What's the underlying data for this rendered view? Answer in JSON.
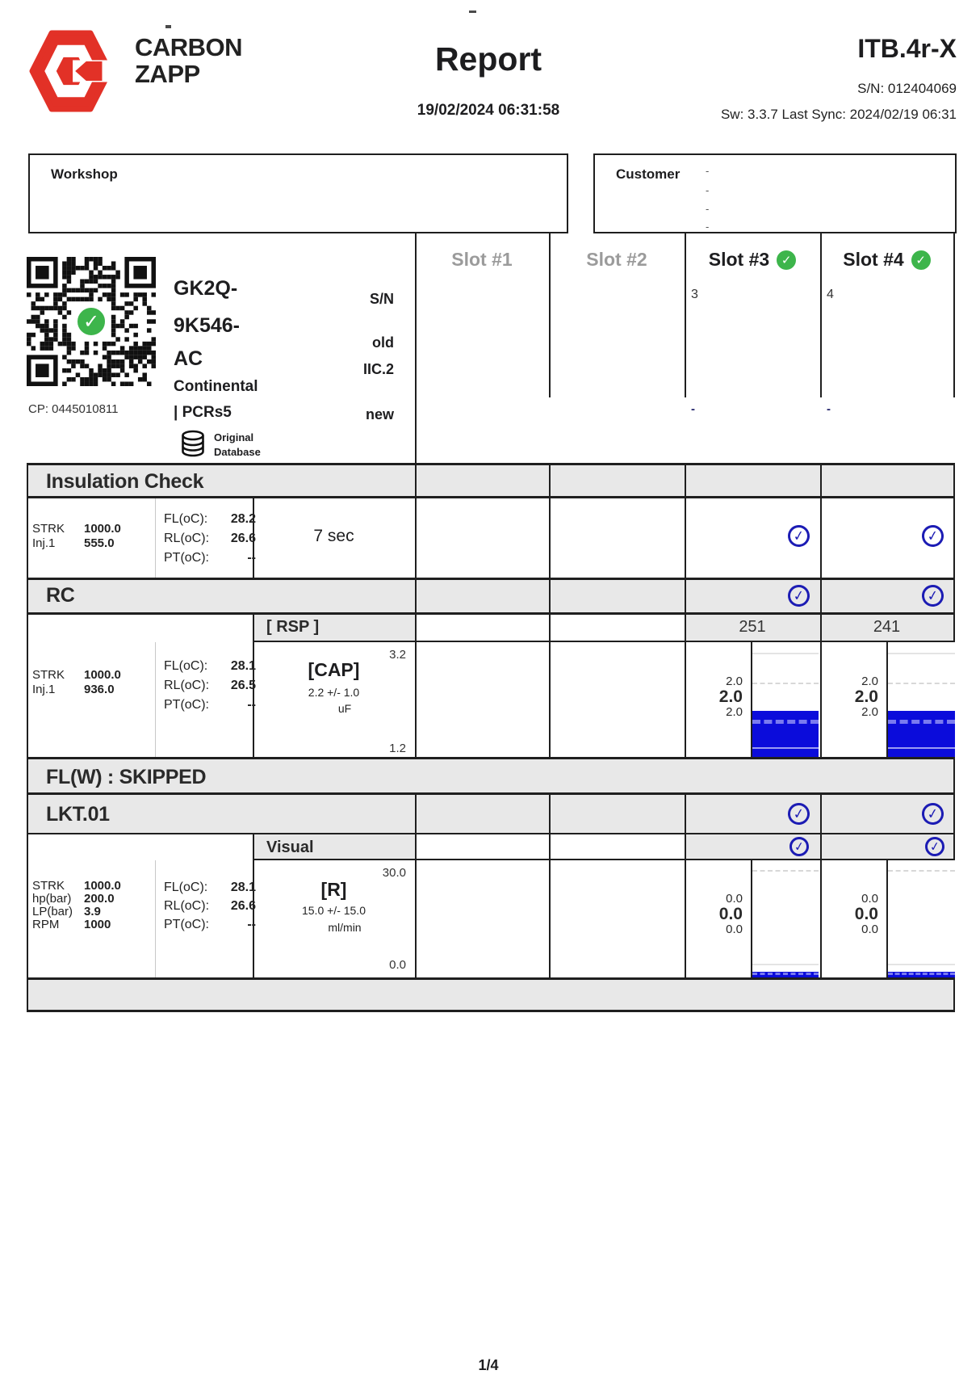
{
  "colors": {
    "brand_red": "#e23127",
    "pass_green": "#3db54b",
    "check_blue": "#1c1cb4",
    "bar_blue": "#0b0cdb",
    "band_gray": "#e8e8e8",
    "inactive_slot_text": "#9b9b9b"
  },
  "header": {
    "brand_line1": "CARBON",
    "brand_line2": "ZAPP",
    "title": "Report",
    "datetime": "19/02/2024 06:31:58",
    "model": "ITB.4r-X",
    "serial": "S/N: 012404069",
    "sw_line": "Sw: 3.3.7 Last Sync: 2024/02/19 06:31"
  },
  "workshop_box": {
    "label": "Workshop"
  },
  "customer_box": {
    "label": "Customer",
    "lines": [
      "-",
      "-",
      "-",
      "-"
    ]
  },
  "part": {
    "qr_caption": "CP: 0445010811",
    "code_lines": [
      "GK2Q-",
      "9K546-",
      "AC"
    ],
    "brand": "Continental",
    "series": "| PCRs5",
    "db_line1": "Original",
    "db_line2": "Database",
    "row_labels": {
      "sn": "S/N",
      "old": "old",
      "iic": "IIC.2",
      "new": "new"
    }
  },
  "slot_area": {
    "slots": [
      {
        "label": "Slot #1",
        "state": "empty"
      },
      {
        "label": "Slot #2",
        "state": "empty"
      },
      {
        "label": "Slot #3",
        "state": "ok",
        "sn": "3",
        "new_val": "-"
      },
      {
        "label": "Slot #4",
        "state": "ok",
        "sn": "4",
        "new_val": "-"
      }
    ]
  },
  "sections": {
    "insulation_check": {
      "title": "Insulation Check",
      "params": [
        {
          "k": "STRK",
          "v": "1000.0"
        },
        {
          "k": "Inj.1",
          "v": "555.0"
        }
      ],
      "temps": [
        {
          "k": "FL(oC):",
          "v": "28.2"
        },
        {
          "k": "RL(oC):",
          "v": "26.6"
        },
        {
          "k": "PT(oC):",
          "v": "--"
        }
      ],
      "duration": "7 sec"
    },
    "rc": {
      "title": "RC",
      "rsp_header": "[ RSP ]",
      "rsp_slot3": "251",
      "rsp_slot4": "241",
      "params": [
        {
          "k": "STRK",
          "v": "1000.0"
        },
        {
          "k": "Inj.1",
          "v": "936.0"
        }
      ],
      "temps": [
        {
          "k": "FL(oC):",
          "v": "28.1"
        },
        {
          "k": "RL(oC):",
          "v": "26.5"
        },
        {
          "k": "PT(oC):",
          "v": "--"
        }
      ],
      "measure_label": "[CAP]",
      "nominal": "2.2 +/- 1.0",
      "unit": "uF",
      "scale_max": "3.2",
      "scale_min": "1.2",
      "chart": {
        "ymin": 1.2,
        "ymax": 3.2,
        "min_bar_pct": 4.5
      },
      "slot3": {
        "max": "2.0",
        "avg": "2.0",
        "min": "2.0",
        "bar_value": 2.0
      },
      "slot4": {
        "max": "2.0",
        "avg": "2.0",
        "min": "2.0",
        "bar_value": 2.0
      }
    },
    "flw": {
      "title": "FL(W) : SKIPPED"
    },
    "lkt": {
      "title": "LKT.01",
      "visual_header": "Visual",
      "params": [
        {
          "k": "STRK",
          "v": "1000.0"
        },
        {
          "k": "hp(bar)",
          "v": "200.0"
        },
        {
          "k": "LP(bar)",
          "v": "3.9"
        },
        {
          "k": "RPM",
          "v": "1000"
        }
      ],
      "temps": [
        {
          "k": "FL(oC):",
          "v": "28.1"
        },
        {
          "k": "RL(oC):",
          "v": "26.6"
        },
        {
          "k": "PT(oC):",
          "v": "--"
        }
      ],
      "measure_label": "[R]",
      "nominal": "15.0 +/- 15.0",
      "unit": "ml/min",
      "scale_max": "30.0",
      "scale_min": "0.0",
      "chart": {
        "ymin": 0.0,
        "ymax": 30.0,
        "min_bar_pct": 4.5
      },
      "slot3": {
        "max": "0.0",
        "avg": "0.0",
        "min": "0.0",
        "bar_value": 0.0
      },
      "slot4": {
        "max": "0.0",
        "avg": "0.0",
        "min": "0.0",
        "bar_value": 0.0
      }
    }
  },
  "footer": {
    "page_indicator": "1/4"
  }
}
